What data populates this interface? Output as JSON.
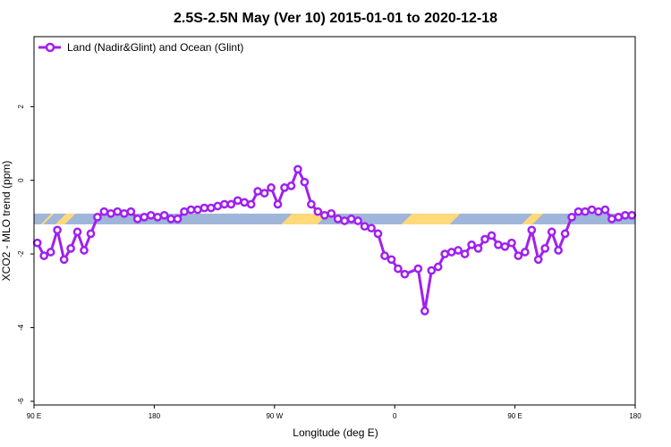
{
  "chart_data": {
    "type": "line",
    "title": "2.5S-2.5N May (Ver 10)   2015-01-01 to 2020-12-18",
    "xlabel": "Longitude (deg E)",
    "ylabel": "XCO2 - MLO trend (ppm)",
    "x_tick_labels": [
      "90 E",
      "180",
      "90 W",
      "0",
      "90 E",
      "180"
    ],
    "x_tick_values": [
      90,
      180,
      270,
      360,
      450,
      540
    ],
    "y_tick_labels": [
      "-6",
      "-4",
      "-2",
      "0",
      "2"
    ],
    "y_tick_values": [
      -6,
      -4,
      -2,
      0,
      2
    ],
    "xlim": [
      90,
      540
    ],
    "ylim": [
      -6.1,
      3.9
    ],
    "grid": false,
    "legend_position": "top-left",
    "series": [
      {
        "name": "Land (Nadir&Glint) and Ocean (Glint)",
        "color": "#a020f0",
        "x": [
          92.5,
          97.5,
          102.5,
          107.5,
          112.5,
          117.5,
          122.5,
          127.5,
          132.5,
          137.5,
          142.5,
          147.5,
          152.5,
          157.5,
          162.5,
          167.5,
          172.5,
          177.5,
          182.5,
          187.5,
          192.5,
          197.5,
          202.5,
          207.5,
          212.5,
          217.5,
          222.5,
          227.5,
          232.5,
          237.5,
          242.5,
          247.5,
          252.5,
          257.5,
          262.5,
          267.5,
          272.5,
          277.5,
          282.5,
          287.5,
          292.5,
          297.5,
          302.5,
          307.5,
          312.5,
          317.5,
          322.5,
          327.5,
          332.5,
          337.5,
          342.5,
          347.5,
          352.5,
          357.5,
          362.5,
          367.5,
          377.5,
          382.5,
          387.5,
          392.5,
          397.5,
          402.5,
          407.5,
          412.5,
          417.5,
          422.5,
          427.5,
          432.5,
          437.5,
          442.5,
          447.5,
          452.5,
          457.5,
          462.5,
          467.5,
          472.5,
          477.5,
          482.5,
          487.5,
          492.5,
          497.5,
          502.5,
          507.5,
          512.5,
          517.5,
          522.5,
          527.5,
          532.5,
          537.5
        ],
        "y": [
          -1.7,
          -2.05,
          -1.95,
          -1.35,
          -2.15,
          -1.85,
          -1.4,
          -1.9,
          -1.45,
          -1.0,
          -0.85,
          -0.9,
          -0.85,
          -0.9,
          -0.85,
          -1.05,
          -1.0,
          -0.95,
          -1.0,
          -0.95,
          -1.05,
          -1.05,
          -0.85,
          -0.8,
          -0.8,
          -0.75,
          -0.75,
          -0.7,
          -0.65,
          -0.65,
          -0.55,
          -0.6,
          -0.65,
          -0.3,
          -0.35,
          -0.2,
          -0.65,
          -0.2,
          -0.15,
          0.3,
          -0.05,
          -0.65,
          -0.85,
          -0.95,
          -0.9,
          -1.05,
          -1.1,
          -1.05,
          -1.1,
          -1.25,
          -1.3,
          -1.45,
          -2.05,
          -2.15,
          -2.4,
          -2.55,
          -2.4,
          -3.55,
          -2.45,
          -2.35,
          -2.0,
          -1.95,
          -1.9,
          -2.0,
          -1.75,
          -1.85,
          -1.6,
          -1.5,
          -1.75,
          -1.8,
          -1.7,
          -2.05,
          -1.95,
          -1.35,
          -2.15,
          -1.85,
          -1.4,
          -1.9,
          -1.45,
          -1.0,
          -0.85,
          -0.85,
          -0.8,
          -0.85,
          -0.8,
          -1.05,
          -1.0,
          -0.95,
          -0.95
        ]
      }
    ],
    "surface_band": {
      "y": -1.05,
      "base_color": "#9fb5d9",
      "highlight_color": "#ffd97a",
      "highlight_ranges": [
        [
          99,
          101
        ],
        [
          110,
          117
        ],
        [
          279,
          306
        ],
        [
          369,
          405
        ],
        [
          459,
          467
        ]
      ]
    }
  }
}
